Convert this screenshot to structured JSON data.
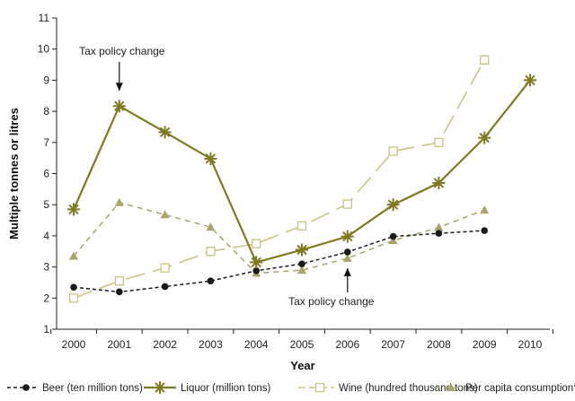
{
  "chart_data": {
    "type": "line",
    "xlabel": "Year",
    "ylabel": "Multiple tonnes or litres",
    "ylim": [
      1,
      11
    ],
    "grid": false,
    "categories": [
      "2000",
      "2001",
      "2002",
      "2003",
      "2004",
      "2005",
      "2006",
      "2007",
      "2008",
      "2009",
      "2010"
    ],
    "yticks": [
      "1",
      "2",
      "3",
      "4",
      "5",
      "6",
      "7",
      "8",
      "9",
      "10",
      "11"
    ],
    "series": [
      {
        "name": "Beer (ten million tons)",
        "style": "dotted-dash",
        "marker": "circle",
        "color": "#1a1a1a",
        "values": [
          2.35,
          2.2,
          2.37,
          2.55,
          2.88,
          3.1,
          3.48,
          3.98,
          4.08,
          4.17,
          null
        ]
      },
      {
        "name": "Liquor (million tons)",
        "style": "solid",
        "marker": "star",
        "color": "#7e7a22",
        "values": [
          4.85,
          8.17,
          7.33,
          6.48,
          3.15,
          3.55,
          3.98,
          5.0,
          5.7,
          7.15,
          9.0
        ]
      },
      {
        "name": "Wine (hundred thousand tons)",
        "style": "long-dash",
        "marker": "open-square",
        "color": "#c9c384",
        "values": [
          2.0,
          2.55,
          2.97,
          3.5,
          3.75,
          4.32,
          5.02,
          6.72,
          7.0,
          9.65,
          null
        ]
      },
      {
        "name": "Per capita consumption",
        "name_suffix": "a",
        "style": "short-dash",
        "marker": "triangle",
        "color": "#a8a46a",
        "values": [
          3.35,
          5.07,
          4.68,
          4.28,
          2.8,
          2.9,
          3.28,
          3.85,
          4.27,
          4.83,
          null
        ]
      }
    ],
    "annotations": [
      {
        "text": "Tax policy change",
        "x": "2001",
        "y": 8.17,
        "position": "above"
      },
      {
        "text": "Tax policy change",
        "x": "2006",
        "y": 3.28,
        "position": "below"
      }
    ],
    "legend": "bottom"
  }
}
